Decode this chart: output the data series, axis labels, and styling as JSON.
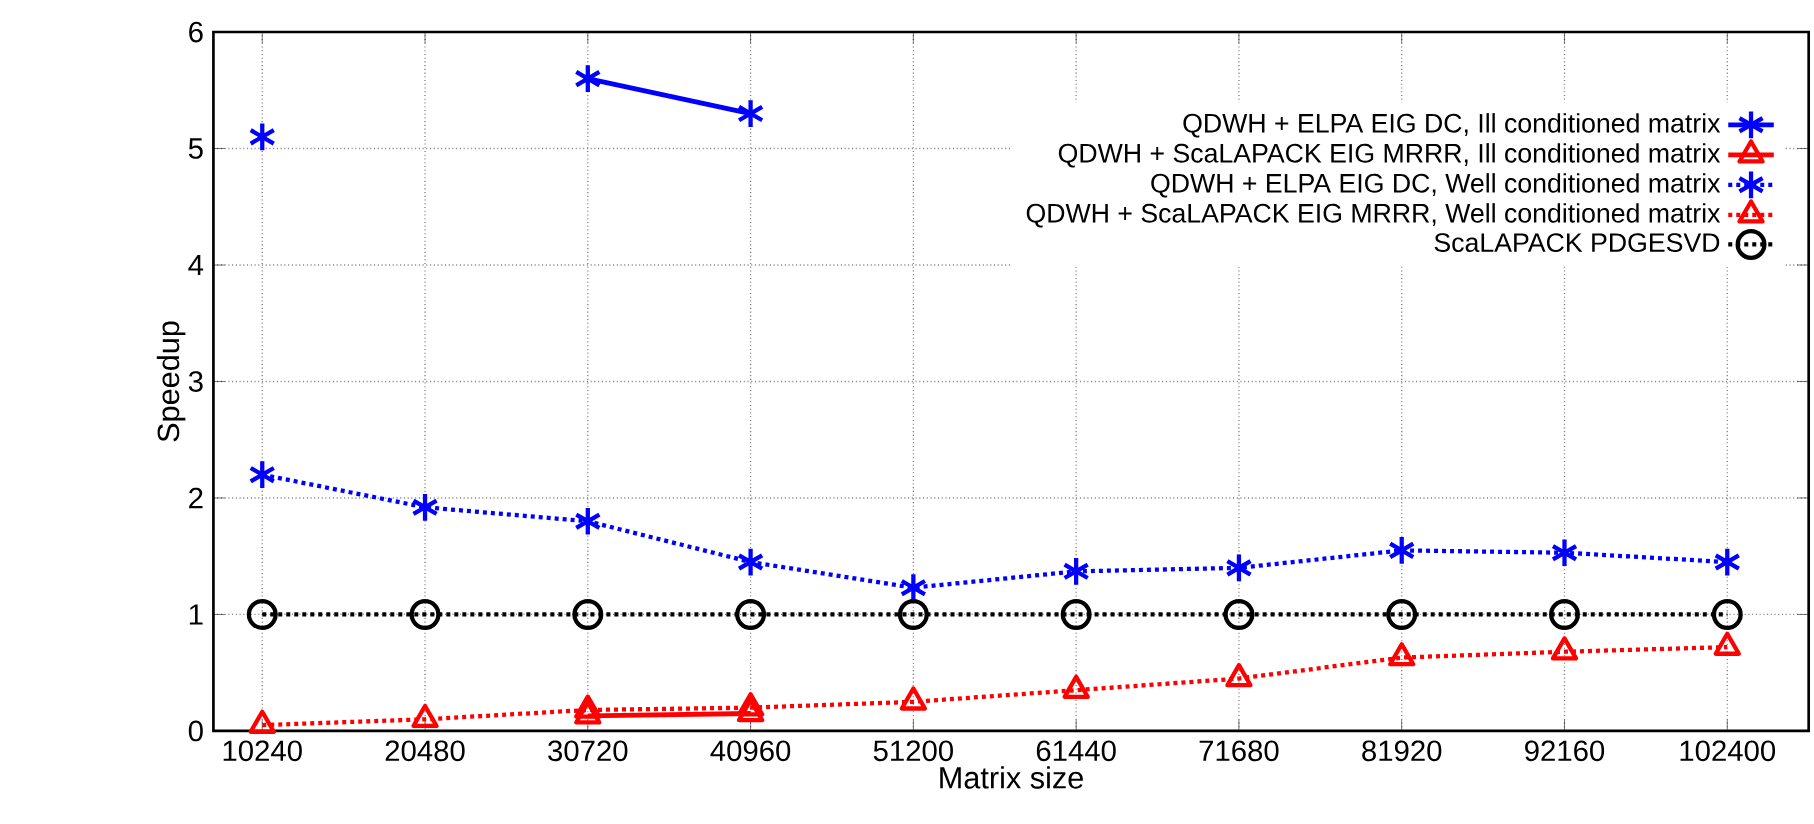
{
  "chart_data": {
    "type": "line",
    "xlabel": "Matrix size",
    "ylabel": "Speedup",
    "categories": [
      "10240",
      "20480",
      "30720",
      "40960",
      "51200",
      "61440",
      "71680",
      "81920",
      "92160",
      "102400"
    ],
    "ylim": [
      0,
      6
    ],
    "yticks": [
      0,
      1,
      2,
      3,
      4,
      5,
      6
    ],
    "grid": true,
    "legend": "top right",
    "series": [
      {
        "name": "QDWH + ELPA EIG DC, Ill conditioned matrix",
        "color": "#0000ff",
        "marker": "cross",
        "line_style": "solid",
        "values": [
          5.1,
          null,
          5.6,
          5.3,
          null,
          null,
          null,
          null,
          null,
          null
        ]
      },
      {
        "name": "QDWH + ScaLAPACK EIG MRRR, Ill conditioned matrix",
        "color": "#ff0000",
        "marker": "triangle",
        "line_style": "solid",
        "values": [
          null,
          null,
          0.13,
          0.15,
          null,
          null,
          null,
          null,
          null,
          null
        ]
      },
      {
        "name": "QDWH + ELPA EIG DC, Well conditioned matrix",
        "color": "#0000ff",
        "marker": "cross",
        "line_style": "dotted",
        "values": [
          2.2,
          1.92,
          1.8,
          1.45,
          1.23,
          1.37,
          1.4,
          1.55,
          1.53,
          1.45
        ]
      },
      {
        "name": "QDWH + ScaLAPACK EIG MRRR, Well conditioned matrix",
        "color": "#ff0000",
        "marker": "triangle",
        "line_style": "dotted",
        "values": [
          0.05,
          0.1,
          0.18,
          0.2,
          0.25,
          0.35,
          0.45,
          0.63,
          0.68,
          0.72
        ]
      },
      {
        "name": "ScaLAPACK PDGESVD",
        "color": "#000000",
        "marker": "circle",
        "line_style": "dotted",
        "values": [
          1,
          1,
          1,
          1,
          1,
          1,
          1,
          1,
          1,
          1
        ]
      }
    ]
  }
}
